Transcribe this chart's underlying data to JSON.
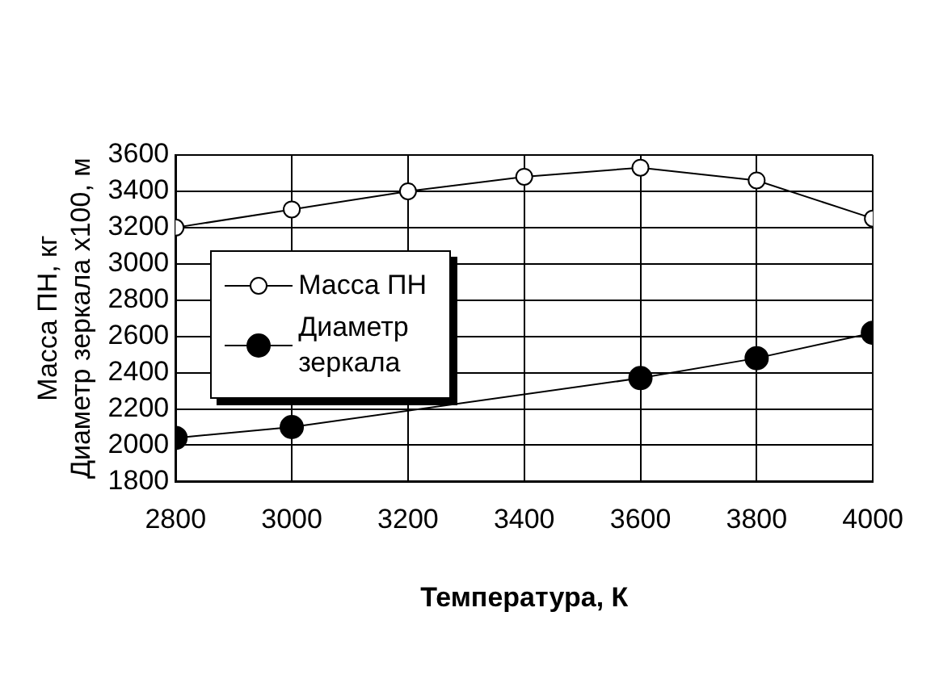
{
  "chart_data": {
    "type": "line",
    "xlabel": "Температура, К",
    "ylabel": "Масса ПН, кг\nДиаметр зеркала x100, м",
    "x": [
      2800,
      3000,
      3200,
      3400,
      3600,
      3800,
      4000
    ],
    "series": [
      {
        "name": "Масса ПН",
        "color": "#000000",
        "values": [
          3200,
          3300,
          3400,
          3480,
          3530,
          3460,
          3250
        ]
      },
      {
        "name": "Диаметр\nзеркала",
        "color": "#000000",
        "values": [
          2040,
          2100,
          null,
          null,
          2370,
          2480,
          2620
        ]
      }
    ],
    "xlim": [
      2800,
      4000
    ],
    "xticks": [
      2800,
      3000,
      3200,
      3400,
      3600,
      3800,
      4000
    ],
    "ylim": [
      1800,
      3600
    ],
    "yticks": [
      1800,
      2000,
      2200,
      2400,
      2600,
      2800,
      3000,
      3200,
      3400,
      3600
    ],
    "grid": true,
    "legend": "left",
    "marker": "circle",
    "line_style": "solid"
  }
}
